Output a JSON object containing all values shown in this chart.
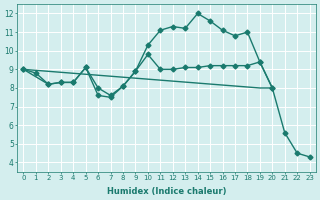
{
  "line1_x": [
    0,
    1,
    2,
    3,
    4,
    5,
    6,
    7,
    8,
    9,
    10,
    11,
    12,
    13,
    14,
    15,
    16,
    17,
    18,
    19,
    20,
    21,
    22,
    23
  ],
  "line1_y": [
    9.0,
    8.8,
    8.2,
    8.3,
    8.3,
    9.1,
    7.6,
    7.5,
    8.1,
    8.9,
    10.3,
    11.1,
    11.3,
    11.2,
    12.0,
    11.6,
    11.1,
    10.8,
    11.0,
    9.4,
    8.0,
    5.6,
    4.5,
    4.3
  ],
  "line2_x": [
    0,
    2,
    3,
    4,
    5,
    6,
    7,
    8,
    9,
    10,
    11,
    12,
    13,
    14,
    15,
    16,
    17,
    18,
    19,
    20
  ],
  "line2_y": [
    9.0,
    8.2,
    8.3,
    8.3,
    9.1,
    8.0,
    7.6,
    8.1,
    8.9,
    9.8,
    9.0,
    9.0,
    9.1,
    9.1,
    9.2,
    9.2,
    9.2,
    9.2,
    9.4,
    8.0
  ],
  "line3_x": [
    0,
    19,
    20
  ],
  "line3_y": [
    9.0,
    8.0,
    8.0
  ],
  "line_color": "#1a7a6e",
  "bg_color": "#d4eeee",
  "grid_color": "#b8d8d8",
  "xlabel": "Humidex (Indice chaleur)",
  "xlim": [
    -0.5,
    23.5
  ],
  "ylim": [
    3.5,
    12.5
  ],
  "xticks": [
    0,
    1,
    2,
    3,
    4,
    5,
    6,
    7,
    8,
    9,
    10,
    11,
    12,
    13,
    14,
    15,
    16,
    17,
    18,
    19,
    20,
    21,
    22,
    23
  ],
  "yticks": [
    4,
    5,
    6,
    7,
    8,
    9,
    10,
    11,
    12
  ],
  "marker": "D",
  "marker_size": 2.5,
  "linewidth": 1.0
}
